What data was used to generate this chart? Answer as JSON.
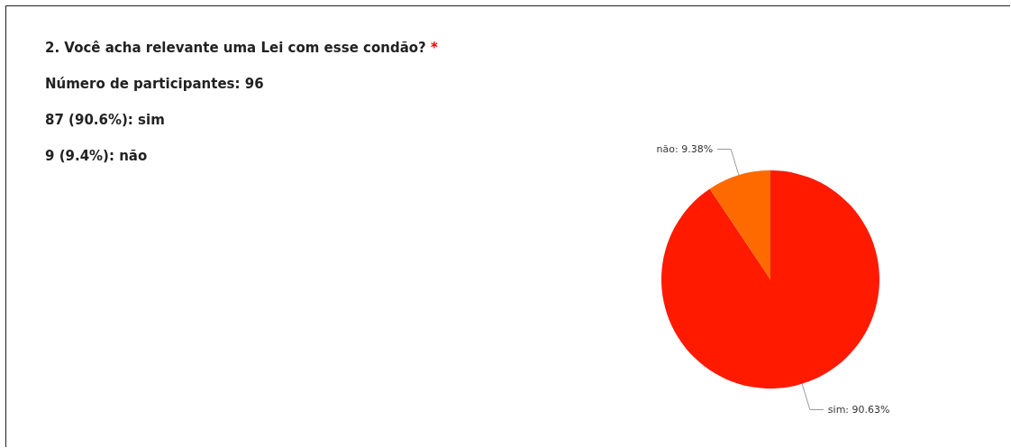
{
  "chart_data": {
    "type": "pie",
    "title": "2.  Você acha relevante uma Lei com esse condão? *",
    "subtitle": "Número de participantes: 96",
    "annotations": [
      "87 (90.6%): sim",
      "9 (9.4%): não"
    ],
    "categories": [
      "sim",
      "não"
    ],
    "values": [
      90.63,
      9.38
    ],
    "colors": [
      "#ff1a00",
      "#ff6a00"
    ],
    "value_labels": [
      ": 90.63%",
      ": 9.38%"
    ],
    "legend": false
  }
}
